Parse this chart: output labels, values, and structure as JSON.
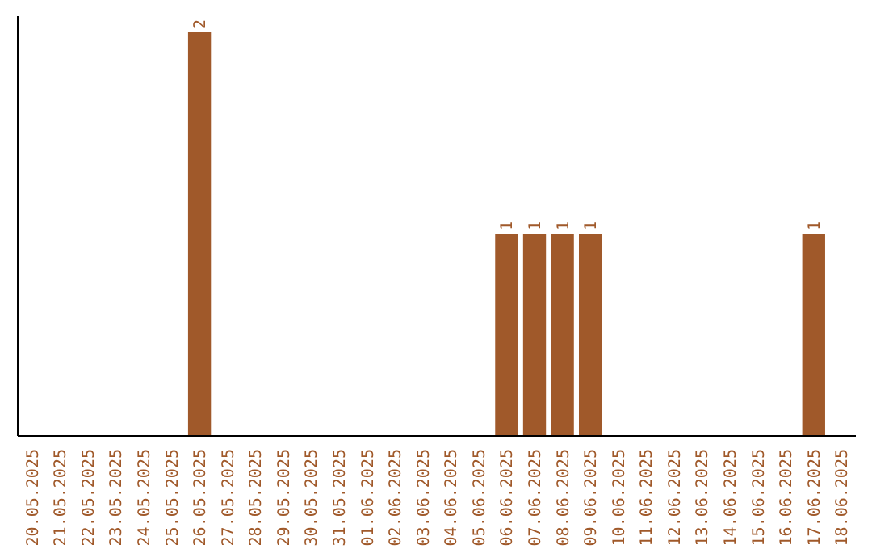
{
  "chart_data": {
    "type": "bar",
    "categories": [
      "20.05.2025",
      "21.05.2025",
      "22.05.2025",
      "23.05.2025",
      "24.05.2025",
      "25.05.2025",
      "26.05.2025",
      "27.05.2025",
      "28.05.2025",
      "29.05.2025",
      "30.05.2025",
      "31.05.2025",
      "01.06.2025",
      "02.06.2025",
      "03.06.2025",
      "04.06.2025",
      "05.06.2025",
      "06.06.2025",
      "07.06.2025",
      "08.06.2025",
      "09.06.2025",
      "10.06.2025",
      "11.06.2025",
      "12.06.2025",
      "13.06.2025",
      "14.06.2025",
      "15.06.2025",
      "16.06.2025",
      "17.06.2025",
      "18.06.2025"
    ],
    "values": [
      0,
      0,
      0,
      0,
      0,
      0,
      2,
      0,
      0,
      0,
      0,
      0,
      0,
      0,
      0,
      0,
      0,
      1,
      1,
      1,
      1,
      0,
      0,
      0,
      0,
      0,
      0,
      0,
      1,
      0
    ],
    "value_labels": [
      null,
      null,
      null,
      null,
      null,
      null,
      "2",
      null,
      null,
      null,
      null,
      null,
      null,
      null,
      null,
      null,
      null,
      "1",
      "1",
      "1",
      "1",
      null,
      null,
      null,
      null,
      null,
      null,
      null,
      "1",
      null
    ],
    "color": "#a0592a",
    "ylim": [
      0,
      2.08
    ],
    "tick_labels": "x"
  }
}
